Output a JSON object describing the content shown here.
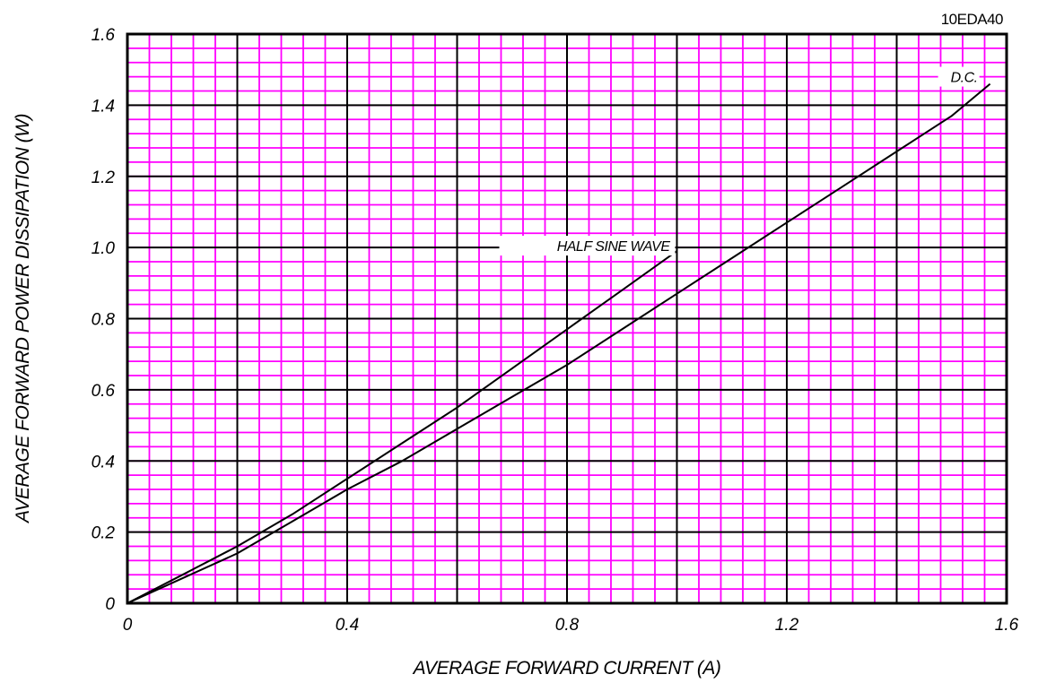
{
  "chart_data": {
    "type": "line",
    "part_number": "10EDA40",
    "xlabel": "AVERAGE FORWARD CURRENT (A)",
    "ylabel": "AVERAGE FORWARD POWER DISSIPATION (W)",
    "xlim": [
      0,
      1.6
    ],
    "ylim": [
      0,
      1.6
    ],
    "x_ticks": [
      "0",
      "0.4",
      "0.8",
      "1.2",
      "1.6"
    ],
    "y_ticks": [
      "0",
      "0.2",
      "0.4",
      "0.6",
      "0.8",
      "1.0",
      "1.2",
      "1.4",
      "1.6"
    ],
    "grid": true,
    "minor_grid_color": "#ff00ff",
    "major_grid_color": "#000000",
    "line_color": "#000000",
    "series": [
      {
        "name": "HALF SINE WAVE",
        "x": [
          0,
          0.1,
          0.2,
          0.3,
          0.4,
          0.5,
          0.6,
          0.7,
          0.8,
          0.9,
          1.0
        ],
        "y": [
          0,
          0.08,
          0.16,
          0.25,
          0.35,
          0.45,
          0.55,
          0.66,
          0.77,
          0.88,
          0.99
        ]
      },
      {
        "name": "D.C.",
        "x": [
          0,
          0.1,
          0.2,
          0.3,
          0.4,
          0.5,
          0.6,
          0.7,
          0.8,
          0.9,
          1.0,
          1.1,
          1.2,
          1.3,
          1.4,
          1.5,
          1.57
        ],
        "y": [
          0,
          0.07,
          0.14,
          0.23,
          0.32,
          0.4,
          0.49,
          0.58,
          0.67,
          0.77,
          0.87,
          0.97,
          1.07,
          1.17,
          1.27,
          1.37,
          1.46
        ]
      }
    ]
  }
}
